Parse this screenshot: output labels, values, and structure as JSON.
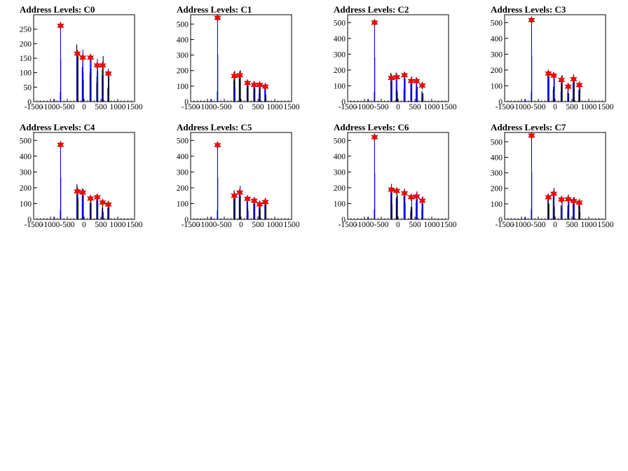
{
  "chart_data": [
    {
      "type": "bar",
      "title": "Address Levels: C0",
      "xlim": [
        -1500,
        1500
      ],
      "ylim": [
        0,
        300
      ],
      "xticks": [
        "-1500",
        "-1000",
        "-500",
        "0",
        "500",
        "1000",
        "1500"
      ],
      "yticks": [
        "0",
        "50",
        "100",
        "150",
        "200",
        "250"
      ],
      "peaks": [
        {
          "x": -700,
          "y": 262
        },
        {
          "x": -200,
          "y": 166
        },
        {
          "x": -40,
          "y": 152
        },
        {
          "x": 190,
          "y": 152
        },
        {
          "x": 390,
          "y": 125
        },
        {
          "x": 550,
          "y": 125
        },
        {
          "x": 720,
          "y": 97
        }
      ]
    },
    {
      "type": "bar",
      "title": "Address Levels: C1",
      "xlim": [
        -1500,
        1500
      ],
      "ylim": [
        0,
        560
      ],
      "xticks": [
        "-1500",
        "-1000",
        "-500",
        "0",
        "500",
        "1000",
        "1500"
      ],
      "yticks": [
        "0",
        "100",
        "200",
        "300",
        "400",
        "500"
      ],
      "peaks": [
        {
          "x": -700,
          "y": 540
        },
        {
          "x": -200,
          "y": 165
        },
        {
          "x": -40,
          "y": 170
        },
        {
          "x": 190,
          "y": 120
        },
        {
          "x": 390,
          "y": 108
        },
        {
          "x": 550,
          "y": 108
        },
        {
          "x": 720,
          "y": 97
        }
      ]
    },
    {
      "type": "bar",
      "title": "Address Levels: C2",
      "xlim": [
        -1500,
        1500
      ],
      "ylim": [
        0,
        550
      ],
      "xticks": [
        "-1500",
        "-1000",
        "-500",
        "0",
        "500",
        "1000",
        "1500"
      ],
      "yticks": [
        "0",
        "100",
        "200",
        "300",
        "400",
        "500"
      ],
      "peaks": [
        {
          "x": -700,
          "y": 500
        },
        {
          "x": -200,
          "y": 150
        },
        {
          "x": -40,
          "y": 155
        },
        {
          "x": 190,
          "y": 167
        },
        {
          "x": 390,
          "y": 130
        },
        {
          "x": 550,
          "y": 130
        },
        {
          "x": 720,
          "y": 102
        }
      ]
    },
    {
      "type": "bar",
      "title": "Address Levels: C3",
      "xlim": [
        -1500,
        1500
      ],
      "ylim": [
        0,
        550
      ],
      "xticks": [
        "-1500",
        "-1000",
        "-500",
        "0",
        "500",
        "1000",
        "1500"
      ],
      "yticks": [
        "0",
        "100",
        "200",
        "300",
        "400",
        "500"
      ],
      "peaks": [
        {
          "x": -700,
          "y": 516
        },
        {
          "x": -200,
          "y": 178
        },
        {
          "x": -40,
          "y": 165
        },
        {
          "x": 190,
          "y": 137
        },
        {
          "x": 390,
          "y": 95
        },
        {
          "x": 550,
          "y": 142
        },
        {
          "x": 720,
          "y": 105
        }
      ]
    },
    {
      "type": "bar",
      "title": "Address Levels: C4",
      "xlim": [
        -1500,
        1500
      ],
      "ylim": [
        0,
        550
      ],
      "xticks": [
        "-1500",
        "-1000",
        "-500",
        "0",
        "500",
        "1000",
        "1500"
      ],
      "yticks": [
        "0",
        "100",
        "200",
        "300",
        "400",
        "500"
      ],
      "peaks": [
        {
          "x": -700,
          "y": 472
        },
        {
          "x": -200,
          "y": 177
        },
        {
          "x": -40,
          "y": 170
        },
        {
          "x": 190,
          "y": 132
        },
        {
          "x": 390,
          "y": 140
        },
        {
          "x": 550,
          "y": 107
        },
        {
          "x": 720,
          "y": 94
        }
      ]
    },
    {
      "type": "bar",
      "title": "Address Levels: C5",
      "xlim": [
        -1500,
        1500
      ],
      "ylim": [
        0,
        550
      ],
      "xticks": [
        "-1500",
        "-1000",
        "-500",
        "0",
        "500",
        "1000",
        "1500"
      ],
      "yticks": [
        "0",
        "100",
        "200",
        "300",
        "400",
        "500"
      ],
      "peaks": [
        {
          "x": -700,
          "y": 470
        },
        {
          "x": -200,
          "y": 150
        },
        {
          "x": -40,
          "y": 170
        },
        {
          "x": 190,
          "y": 130
        },
        {
          "x": 390,
          "y": 118
        },
        {
          "x": 550,
          "y": 95
        },
        {
          "x": 720,
          "y": 110
        }
      ]
    },
    {
      "type": "bar",
      "title": "Address Levels: C6",
      "xlim": [
        -1500,
        1500
      ],
      "ylim": [
        0,
        550
      ],
      "xticks": [
        "-1500",
        "-1000",
        "-500",
        "0",
        "500",
        "1000",
        "1500"
      ],
      "yticks": [
        "0",
        "100",
        "200",
        "300",
        "400",
        "500"
      ],
      "peaks": [
        {
          "x": -700,
          "y": 520
        },
        {
          "x": -200,
          "y": 188
        },
        {
          "x": -40,
          "y": 180
        },
        {
          "x": 190,
          "y": 165
        },
        {
          "x": 390,
          "y": 140
        },
        {
          "x": 550,
          "y": 145
        },
        {
          "x": 720,
          "y": 118
        }
      ]
    },
    {
      "type": "bar",
      "title": "Address Levels: C7",
      "xlim": [
        -1500,
        1500
      ],
      "ylim": [
        0,
        560
      ],
      "xticks": [
        "-1500",
        "-1000",
        "-500",
        "0",
        "500",
        "1000",
        "1500"
      ],
      "yticks": [
        "0",
        "100",
        "200",
        "300",
        "400",
        "500"
      ],
      "peaks": [
        {
          "x": -700,
          "y": 540
        },
        {
          "x": -200,
          "y": 142
        },
        {
          "x": -40,
          "y": 165
        },
        {
          "x": 190,
          "y": 128
        },
        {
          "x": 390,
          "y": 130
        },
        {
          "x": 550,
          "y": 118
        },
        {
          "x": 720,
          "y": 108
        }
      ]
    }
  ],
  "colors": {
    "histogram": "#0000ff",
    "histogram_dark": "#000000",
    "marker": "#ff0000",
    "frame": "#000000"
  }
}
